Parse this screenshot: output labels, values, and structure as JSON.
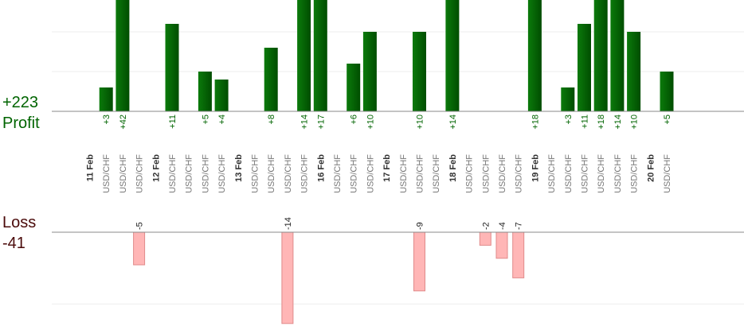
{
  "summary": {
    "profit_total": "+223",
    "profit_label": "Profit",
    "loss_label": "Loss",
    "loss_total": "-41"
  },
  "colors": {
    "profit_bar_light": "#0b7a0b",
    "profit_bar_dark": "#004d00",
    "profit_text": "#006400",
    "loss_bar_fill": "#ffb6b6",
    "loss_bar_stroke": "#e08a8a",
    "loss_text": "#4a0a0a",
    "axis": "#888888",
    "grid": "#eeeeee"
  },
  "chart_data": {
    "type": "bar",
    "categories": [
      "11 Feb",
      "USD/CHF",
      "USD/CHF",
      "USD/CHF",
      "12 Feb",
      "USD/CHF",
      "USD/CHF",
      "USD/CHF",
      "USD/CHF",
      "13 Feb",
      "USD/CHF",
      "USD/CHF",
      "USD/CHF",
      "USD/CHF",
      "16 Feb",
      "USD/CHF",
      "USD/CHF",
      "USD/CHF",
      "17 Feb",
      "USD/CHF",
      "USD/CHF",
      "USD/CHF",
      "18 Feb",
      "USD/CHF",
      "USD/CHF",
      "USD/CHF",
      "USD/CHF",
      "19 Feb",
      "USD/CHF",
      "USD/CHF",
      "USD/CHF",
      "USD/CHF",
      "USD/CHF",
      "USD/CHF",
      "20 Feb",
      "USD/CHF"
    ],
    "profit_values": [
      null,
      3,
      42,
      null,
      null,
      11,
      null,
      5,
      4,
      null,
      null,
      8,
      null,
      14,
      17,
      null,
      6,
      10,
      null,
      null,
      10,
      null,
      14,
      null,
      null,
      null,
      null,
      18,
      null,
      3,
      11,
      18,
      14,
      10,
      null,
      5
    ],
    "profit_labels": [
      "",
      "+3",
      "+42",
      "",
      "",
      "+11",
      "",
      "+5",
      "+4",
      "",
      "",
      "+8",
      "",
      "+14",
      "+17",
      "",
      "+6",
      "+10",
      "",
      "",
      "+10",
      "",
      "+14",
      "",
      "",
      "",
      "",
      "+18",
      "",
      "+3",
      "+11",
      "+18",
      "+14",
      "+10",
      "",
      "+5"
    ],
    "loss_values": [
      null,
      null,
      null,
      -5,
      null,
      null,
      null,
      null,
      null,
      null,
      null,
      null,
      -14,
      null,
      null,
      null,
      null,
      null,
      null,
      null,
      -9,
      null,
      null,
      null,
      -2,
      -4,
      -7,
      null,
      null,
      null,
      null,
      null,
      null,
      null,
      null,
      null
    ],
    "loss_labels": [
      "",
      "",
      "",
      "-5",
      "",
      "",
      "",
      "",
      "",
      "",
      "",
      "",
      "-14",
      "",
      "",
      "",
      "",
      "",
      "",
      "",
      "-9",
      "",
      "",
      "",
      "-2",
      "-4",
      "-7",
      "",
      "",
      "",
      "",
      "",
      "",
      "",
      "",
      ""
    ],
    "profit_ylim": [
      0,
      15
    ],
    "loss_ylim": [
      -12.5,
      0
    ],
    "grid": true
  }
}
